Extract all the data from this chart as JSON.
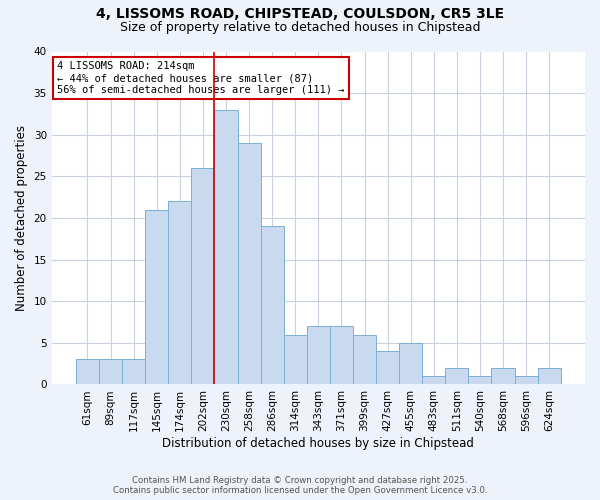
{
  "title_line1": "4, LISSOMS ROAD, CHIPSTEAD, COULSDON, CR5 3LE",
  "title_line2": "Size of property relative to detached houses in Chipstead",
  "xlabel": "Distribution of detached houses by size in Chipstead",
  "ylabel": "Number of detached properties",
  "bins": [
    "61sqm",
    "89sqm",
    "117sqm",
    "145sqm",
    "174sqm",
    "202sqm",
    "230sqm",
    "258sqm",
    "286sqm",
    "314sqm",
    "343sqm",
    "371sqm",
    "399sqm",
    "427sqm",
    "455sqm",
    "483sqm",
    "511sqm",
    "540sqm",
    "568sqm",
    "596sqm",
    "624sqm"
  ],
  "values": [
    3,
    3,
    3,
    21,
    22,
    26,
    33,
    29,
    19,
    6,
    7,
    7,
    6,
    4,
    5,
    1,
    2,
    1,
    2,
    1,
    2
  ],
  "bar_color": "#c9d9ef",
  "bar_edge_color": "#7bafd4",
  "annotation_box_color": "#ffffff",
  "annotation_box_edge": "#cc0000",
  "property_line_color": "#cc0000",
  "property_label": "4 LISSOMS ROAD: 214sqm",
  "annotation_line1": "← 44% of detached houses are smaller (87)",
  "annotation_line2": "56% of semi-detached houses are larger (111) →",
  "annotation_fontsize": 7.5,
  "title_fontsize1": 10,
  "title_fontsize2": 9,
  "ylim": [
    0,
    40
  ],
  "yticks": [
    0,
    5,
    10,
    15,
    20,
    25,
    30,
    35,
    40
  ],
  "footer_line1": "Contains HM Land Registry data © Crown copyright and database right 2025.",
  "footer_line2": "Contains public sector information licensed under the Open Government Licence v3.0.",
  "background_color": "#eef2fa",
  "plot_bg_color": "#ffffff",
  "grid_color": "#c8d0e0"
}
